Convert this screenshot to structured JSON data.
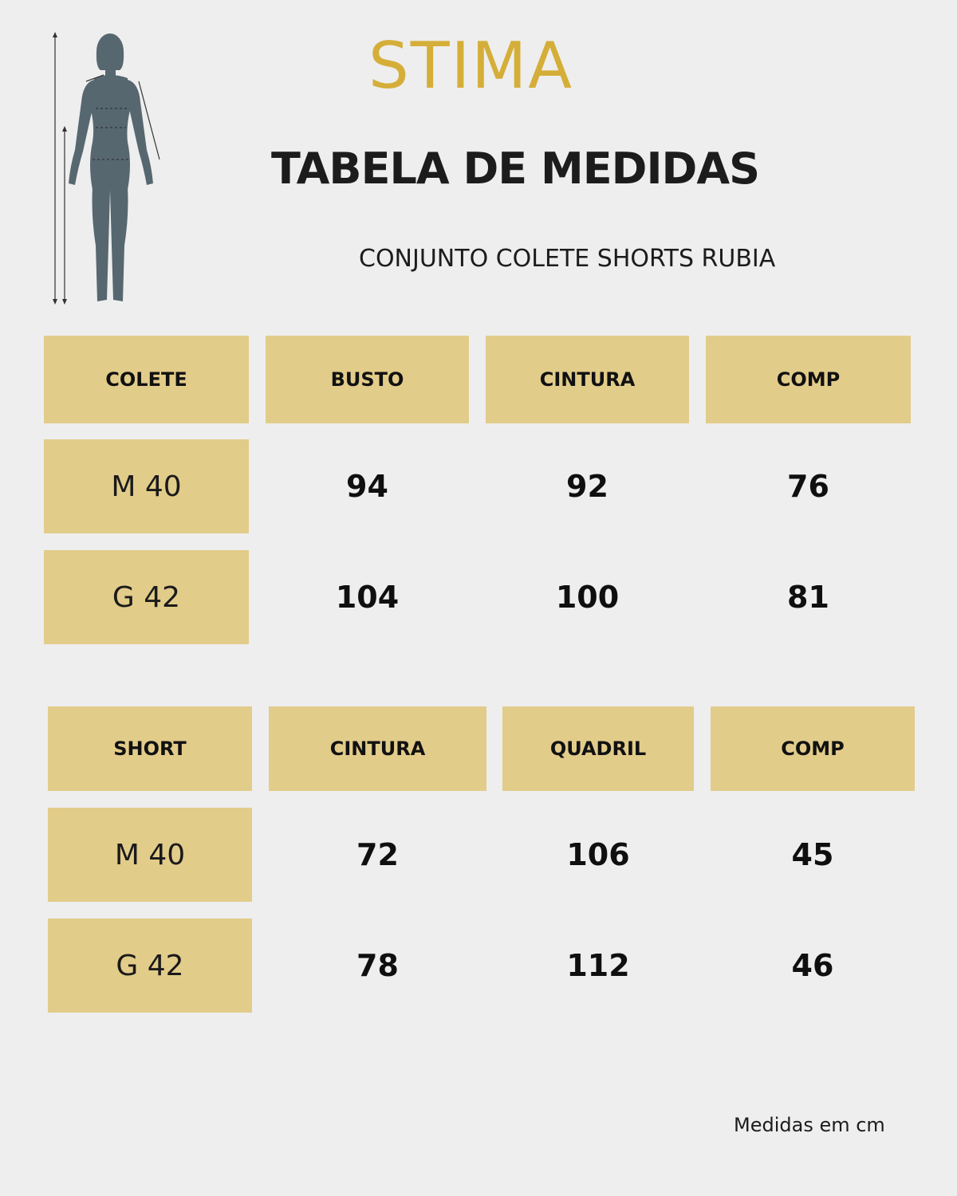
{
  "brand": {
    "logo_text": "STIMA",
    "color": "#d4ae38"
  },
  "title": "TABELA DE MEDIDAS",
  "subtitle": "CONJUNTO COLETE SHORTS RUBIA",
  "colete_table": {
    "headers": [
      "COLETE",
      "BUSTO",
      "CINTURA",
      "COMP"
    ],
    "rows": [
      {
        "size": "M 40",
        "values": [
          "94",
          "92",
          "76"
        ]
      },
      {
        "size": "G 42",
        "values": [
          "104",
          "100",
          "81"
        ]
      }
    ]
  },
  "short_table": {
    "headers": [
      "SHORT",
      "CINTURA",
      "QUADRIL",
      "COMP"
    ],
    "rows": [
      {
        "size": "M 40",
        "values": [
          "72",
          "106",
          "45"
        ]
      },
      {
        "size": "G 42",
        "values": [
          "78",
          "112",
          "46"
        ]
      }
    ]
  },
  "footer_note": "Medidas em cm",
  "colors": {
    "background": "#eeeeee",
    "cell_fill": "#e2cc8a",
    "figure": "#566770"
  },
  "icons": {
    "figure": "female-body-measurement-icon"
  }
}
